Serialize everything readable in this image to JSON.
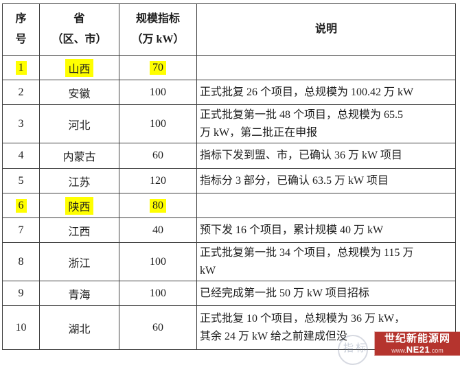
{
  "table": {
    "headers": {
      "no": "序\n号",
      "province": "省\n（区、市）",
      "indicator": "规模指标\n（万 kW）",
      "note": "说明"
    },
    "rows": [
      {
        "no": "1",
        "province": "山西",
        "indicator": "70",
        "note": "",
        "highlight": true
      },
      {
        "no": "2",
        "province": "安徽",
        "indicator": "100",
        "note": "正式批复 26 个项目，总规模为 100.42 万 kW",
        "highlight": false
      },
      {
        "no": "3",
        "province": "河北",
        "indicator": "100",
        "note": "正式批复第一批 48 个项目，总规模为 65.5\n万 kW，第二批正在申报",
        "highlight": false
      },
      {
        "no": "4",
        "province": "内蒙古",
        "indicator": "60",
        "note": "指标下发到盟、市，已确认 36 万 kW 项目",
        "highlight": false
      },
      {
        "no": "5",
        "province": "江苏",
        "indicator": "120",
        "note": "指标分 3 部分，已确认 63.5 万 kW 项目",
        "highlight": false
      },
      {
        "no": "6",
        "province": "陕西",
        "indicator": "80",
        "note": "",
        "highlight": true
      },
      {
        "no": "7",
        "province": "江西",
        "indicator": "40",
        "note": "预下发 16 个项目，累计规模 40 万 kW",
        "highlight": false
      },
      {
        "no": "8",
        "province": "浙江",
        "indicator": "100",
        "note": "正式批复第一批 34 个项目，总规模为 115 万\nkW",
        "highlight": false
      },
      {
        "no": "9",
        "province": "青海",
        "indicator": "100",
        "note": "已经完成第一批 50 万 kW 项目招标",
        "highlight": false
      },
      {
        "no": "10",
        "province": "湖北",
        "indicator": "60",
        "note": "正式批复 10 个项目，总规模为 36 万 kW，\n其余 24 万 kW 给之前建成但没",
        "highlight": false
      }
    ]
  },
  "watermark": {
    "site_name": "世纪新能源网",
    "url_prefix": "www.",
    "url_name": "NE21",
    "url_suffix": ".com",
    "ghost_text": "指标",
    "accent_color": "#b5342e"
  },
  "colors": {
    "highlight": "#ffff00",
    "border": "#3f3f3f",
    "text": "#1c1c1c"
  }
}
